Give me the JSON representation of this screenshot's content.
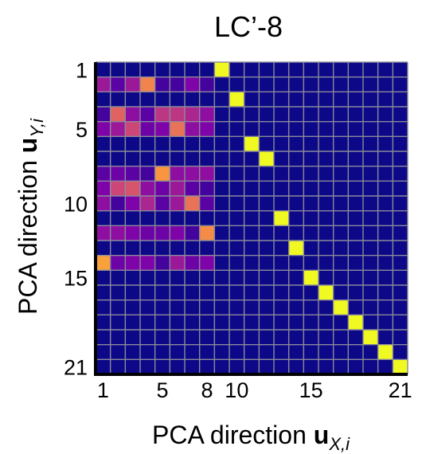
{
  "chart_data": {
    "type": "heatmap",
    "title": "LC’-8",
    "xlabel": {
      "prefix": "PCA direction ",
      "vector": "u",
      "sub": "X,i"
    },
    "ylabel": {
      "prefix": "PCA direction ",
      "vector": "u",
      "sub": "Y,i"
    },
    "n_rows": 21,
    "n_cols": 21,
    "x_ticks": [
      1,
      5,
      8,
      10,
      15,
      21
    ],
    "y_ticks": [
      1,
      5,
      10,
      15,
      21
    ],
    "colormap": "plasma",
    "value_range": [
      0,
      1
    ],
    "background_value": 0,
    "grid": true,
    "diagonal_ones": {
      "rows_cols": [
        [
          1,
          9
        ],
        [
          3,
          10
        ],
        [
          6,
          11
        ],
        [
          7,
          12
        ],
        [
          11,
          13
        ],
        [
          13,
          14
        ],
        [
          15,
          15
        ],
        [
          16,
          16
        ],
        [
          17,
          17
        ],
        [
          18,
          18
        ],
        [
          19,
          19
        ],
        [
          20,
          20
        ],
        [
          21,
          21
        ]
      ],
      "value": 1.0
    },
    "cells": [
      [
        2,
        1,
        0.35
      ],
      [
        2,
        2,
        0.15
      ],
      [
        2,
        3,
        0.35
      ],
      [
        2,
        4,
        0.7
      ],
      [
        2,
        5,
        0.1
      ],
      [
        2,
        6,
        0.1
      ],
      [
        2,
        7,
        0.25
      ],
      [
        2,
        8,
        0.1
      ],
      [
        4,
        1,
        0.1
      ],
      [
        4,
        2,
        0.6
      ],
      [
        4,
        3,
        0.3
      ],
      [
        4,
        4,
        0.15
      ],
      [
        4,
        5,
        0.45
      ],
      [
        4,
        6,
        0.45
      ],
      [
        4,
        7,
        0.4
      ],
      [
        4,
        8,
        0.3
      ],
      [
        5,
        1,
        0.25
      ],
      [
        5,
        2,
        0.35
      ],
      [
        5,
        3,
        0.5
      ],
      [
        5,
        4,
        0.2
      ],
      [
        5,
        5,
        0.25
      ],
      [
        5,
        6,
        0.65
      ],
      [
        5,
        7,
        0.3
      ],
      [
        5,
        8,
        0.25
      ],
      [
        8,
        1,
        0.15
      ],
      [
        8,
        2,
        0.2
      ],
      [
        8,
        3,
        0.15
      ],
      [
        8,
        4,
        0.1
      ],
      [
        8,
        5,
        0.75
      ],
      [
        8,
        6,
        0.3
      ],
      [
        8,
        7,
        0.3
      ],
      [
        8,
        8,
        0.3
      ],
      [
        9,
        1,
        0.25
      ],
      [
        9,
        2,
        0.5
      ],
      [
        9,
        3,
        0.55
      ],
      [
        9,
        4,
        0.3
      ],
      [
        9,
        5,
        0.2
      ],
      [
        9,
        6,
        0.35
      ],
      [
        9,
        7,
        0.15
      ],
      [
        9,
        8,
        0.1
      ],
      [
        10,
        1,
        0.3
      ],
      [
        10,
        2,
        0.1
      ],
      [
        10,
        3,
        0.25
      ],
      [
        10,
        4,
        0.4
      ],
      [
        10,
        5,
        0.15
      ],
      [
        10,
        6,
        0.35
      ],
      [
        10,
        7,
        0.65
      ],
      [
        10,
        8,
        0.15
      ],
      [
        12,
        1,
        0.3
      ],
      [
        12,
        2,
        0.3
      ],
      [
        12,
        3,
        0.25
      ],
      [
        12,
        4,
        0.2
      ],
      [
        12,
        5,
        0.2
      ],
      [
        12,
        6,
        0.25
      ],
      [
        12,
        7,
        0.1
      ],
      [
        12,
        8,
        0.72
      ],
      [
        14,
        1,
        0.78
      ],
      [
        14,
        2,
        0.2
      ],
      [
        14,
        3,
        0.25
      ],
      [
        14,
        4,
        0.25
      ],
      [
        14,
        5,
        0.1
      ],
      [
        14,
        6,
        0.35
      ],
      [
        14,
        7,
        0.2
      ],
      [
        14,
        8,
        0.25
      ]
    ]
  }
}
